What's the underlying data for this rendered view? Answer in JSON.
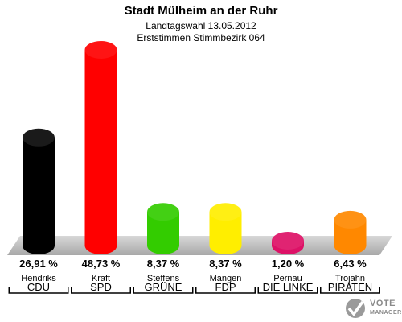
{
  "header": {
    "title": "Stadt Mülheim an der Ruhr",
    "subtitle1": "Landtagswahl 13.05.2012",
    "subtitle2": "Erststimmen Stimmbezirk 064"
  },
  "branding": {
    "line1": "VOTE",
    "line2": "MANAGER"
  },
  "chart_data": {
    "type": "bar",
    "title": "Stadt Mülheim an der Ruhr",
    "subtitle": "Landtagswahl 13.05.2012 — Erststimmen Stimmbezirk 064",
    "categories": [
      "CDU",
      "SPD",
      "GRÜNE",
      "FDP",
      "DIE LINKE",
      "PIRATEN"
    ],
    "candidates": [
      "Hendriks",
      "Kraft",
      "Steffens",
      "Mangen",
      "Pernau",
      "Trojahn"
    ],
    "values": [
      26.91,
      48.73,
      8.37,
      8.37,
      1.2,
      6.43
    ],
    "value_labels": [
      "26,91 %",
      "48,73 %",
      "8,37 %",
      "8,37 %",
      "1,20 %",
      "6,43 %"
    ],
    "colors": [
      "#000000",
      "#ff0000",
      "#33cc00",
      "#ffee00",
      "#dd1166",
      "#ff8800"
    ],
    "unit": "%",
    "ylim": [
      0,
      50
    ],
    "grid": false,
    "legend": "none"
  }
}
